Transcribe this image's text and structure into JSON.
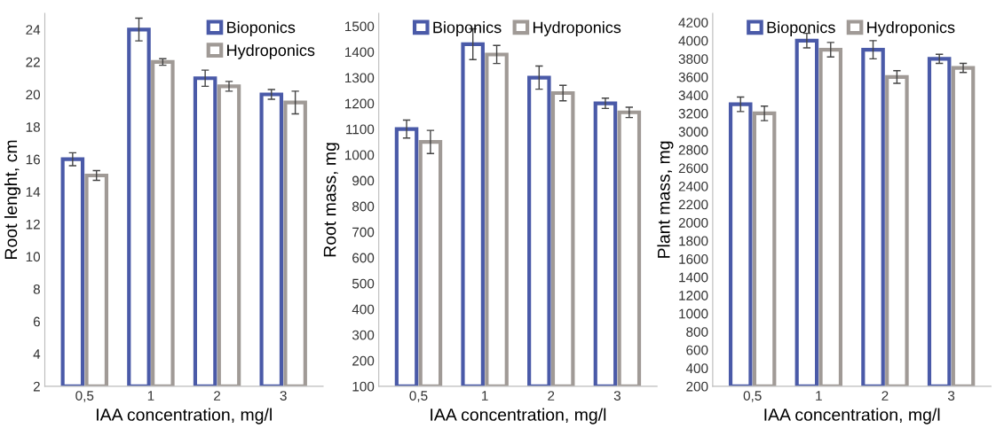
{
  "chart_data": [
    {
      "type": "bar",
      "xlabel": "IAA concentration, mg/l",
      "ylabel": "Root lenght, cm",
      "categories": [
        "0,5",
        "1",
        "2",
        "3"
      ],
      "ylim": [
        2,
        25
      ],
      "yticks": [
        2,
        4,
        6,
        8,
        10,
        12,
        14,
        16,
        18,
        20,
        22,
        24
      ],
      "legend": "top right",
      "grid": false,
      "series": [
        {
          "name": "Bioponics",
          "color": "#4a5aa8",
          "values": [
            16,
            24,
            21,
            20
          ],
          "errors": [
            0.4,
            0.7,
            0.5,
            0.3
          ]
        },
        {
          "name": "Hydroponics",
          "color": "#a09a96",
          "values": [
            15,
            22,
            20.5,
            19.5
          ],
          "errors": [
            0.3,
            0.2,
            0.3,
            0.7
          ]
        }
      ]
    },
    {
      "type": "bar",
      "xlabel": "IAA concentration, mg/l",
      "ylabel": "Root mass, mg",
      "categories": [
        "0,5",
        "1",
        "2",
        "3"
      ],
      "ylim": [
        100,
        1550
      ],
      "yticks": [
        100,
        200,
        300,
        400,
        500,
        600,
        700,
        800,
        900,
        1000,
        1100,
        1200,
        1300,
        1400,
        1500
      ],
      "legend": "top",
      "grid": false,
      "series": [
        {
          "name": "Bioponics",
          "color": "#4a5aa8",
          "values": [
            1100,
            1430,
            1300,
            1200
          ],
          "errors": [
            35,
            60,
            45,
            20
          ]
        },
        {
          "name": "Hydroponics",
          "color": "#a09a96",
          "values": [
            1050,
            1390,
            1240,
            1165
          ],
          "errors": [
            45,
            35,
            30,
            20
          ]
        }
      ]
    },
    {
      "type": "bar",
      "xlabel": "IAA concentration, mg/l",
      "ylabel": "Plant mass, mg",
      "categories": [
        "0,5",
        "1",
        "2",
        "3"
      ],
      "ylim": [
        200,
        4300
      ],
      "yticks": [
        200,
        400,
        600,
        800,
        1000,
        1200,
        1400,
        1600,
        1800,
        2000,
        2200,
        2400,
        2600,
        2800,
        3000,
        3200,
        3400,
        3600,
        3800,
        4000,
        4200
      ],
      "legend": "top",
      "grid": false,
      "series": [
        {
          "name": "Bioponics",
          "color": "#4a5aa8",
          "values": [
            3300,
            4000,
            3900,
            3800
          ],
          "errors": [
            80,
            80,
            100,
            50
          ]
        },
        {
          "name": "Hydroponics",
          "color": "#a09a96",
          "values": [
            3200,
            3900,
            3600,
            3700
          ],
          "errors": [
            80,
            80,
            70,
            50
          ]
        }
      ]
    }
  ]
}
